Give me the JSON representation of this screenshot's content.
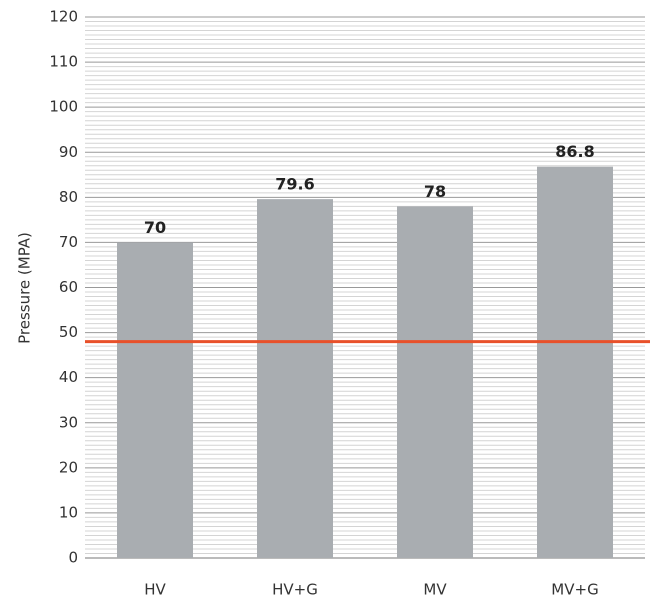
{
  "chart_data": {
    "type": "bar",
    "y_label": "Pressure (MPA)",
    "categories": [
      "HV",
      "HV+G",
      "MV",
      "MV+G"
    ],
    "values": [
      70,
      79.6,
      78,
      86.8
    ],
    "color": "#a9adb1",
    "ylim": [
      0,
      120
    ],
    "yticks": [
      0,
      10,
      20,
      30,
      40,
      50,
      60,
      70,
      80,
      90,
      100,
      110,
      120
    ],
    "grid": true,
    "reference_line": {
      "value": 48,
      "color": "#e8502a"
    }
  }
}
